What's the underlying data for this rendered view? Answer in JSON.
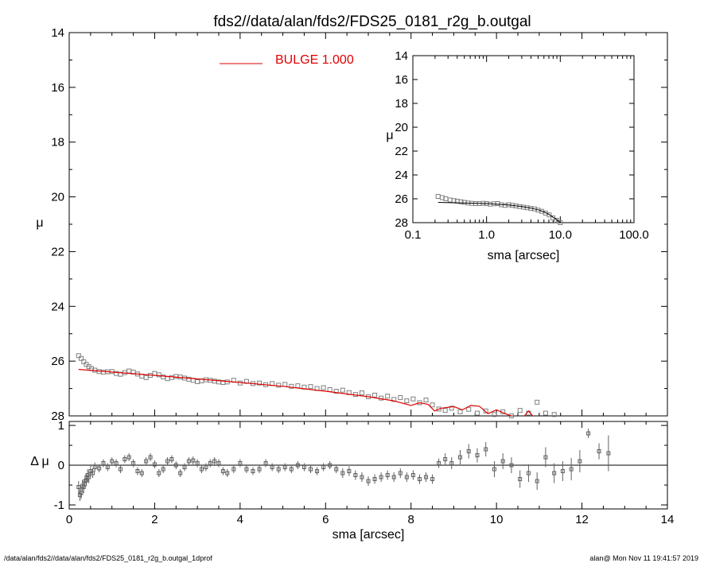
{
  "figure": {
    "title": "fds2//data/alan/fds2/FDS25_0181_r2g_b.outgal",
    "footer_left": "/data/alan/fds2//data/alan/fds2/FDS25_0181_r2g_b.outgal_1dprof",
    "footer_right": "alan@  Mon Nov 11 19:41:57 2019"
  },
  "chart_data": [
    {
      "name": "main",
      "type": "scatter",
      "xlabel": "",
      "ylabel": "μ",
      "xlim": [
        0,
        14
      ],
      "ylim": [
        28,
        14
      ],
      "y_inverted": true,
      "xticks": [
        0,
        2,
        4,
        6,
        8,
        10,
        12,
        14
      ],
      "yticks": [
        14,
        16,
        18,
        20,
        22,
        24,
        26,
        28
      ],
      "legend": {
        "label": "BULGE  1.000",
        "color": "#e00000",
        "placement": "top-center"
      },
      "series": [
        {
          "kind": "points",
          "marker": "open-square",
          "color": "#808080",
          "x": [
            0.22,
            0.28,
            0.34,
            0.4,
            0.46,
            0.52,
            0.6,
            0.7,
            0.8,
            0.9,
            1.0,
            1.1,
            1.2,
            1.3,
            1.4,
            1.5,
            1.6,
            1.7,
            1.8,
            1.9,
            2.0,
            2.1,
            2.2,
            2.3,
            2.4,
            2.5,
            2.6,
            2.7,
            2.8,
            2.9,
            3.0,
            3.1,
            3.2,
            3.3,
            3.4,
            3.5,
            3.6,
            3.7,
            3.85,
            4.0,
            4.15,
            4.3,
            4.45,
            4.6,
            4.75,
            4.9,
            5.05,
            5.2,
            5.35,
            5.5,
            5.65,
            5.8,
            5.95,
            6.1,
            6.25,
            6.4,
            6.55,
            6.7,
            6.85,
            7.0,
            7.15,
            7.3,
            7.45,
            7.6,
            7.75,
            7.9,
            8.05,
            8.2,
            8.35,
            8.5,
            8.65,
            8.8,
            8.95,
            9.15,
            9.35,
            9.55,
            9.75,
            9.95,
            10.15,
            10.35,
            10.55,
            10.75,
            10.95,
            11.15,
            11.35
          ],
          "y": [
            25.8,
            25.9,
            26.02,
            26.12,
            26.2,
            26.27,
            26.33,
            26.38,
            26.4,
            26.39,
            26.38,
            26.45,
            26.48,
            26.42,
            26.36,
            26.4,
            26.47,
            26.55,
            26.6,
            26.52,
            26.45,
            26.5,
            26.58,
            26.64,
            26.6,
            26.56,
            26.58,
            26.62,
            26.66,
            26.7,
            26.75,
            26.72,
            26.68,
            26.7,
            26.73,
            26.76,
            26.78,
            26.76,
            26.7,
            26.8,
            26.74,
            26.82,
            26.8,
            26.86,
            26.82,
            26.88,
            26.85,
            26.92,
            26.9,
            26.95,
            26.93,
            27.0,
            26.97,
            27.04,
            27.1,
            27.06,
            27.15,
            27.22,
            27.16,
            27.3,
            27.24,
            27.35,
            27.28,
            27.4,
            27.33,
            27.45,
            27.38,
            27.52,
            27.42,
            27.6,
            27.75,
            27.8,
            27.72,
            27.85,
            27.76,
            27.9,
            27.82,
            27.95,
            27.85,
            28.0,
            27.8,
            27.9,
            27.5,
            27.9,
            27.95
          ]
        },
        {
          "kind": "line",
          "name": "BULGE  1.000",
          "color": "#e00000",
          "x": [
            0.22,
            1.0,
            2.0,
            3.0,
            4.0,
            5.0,
            6.0,
            7.0,
            7.6,
            8.0,
            8.2,
            8.4,
            8.55,
            8.7,
            9.0,
            9.2,
            9.4,
            9.6,
            9.8,
            10.0,
            10.3,
            10.6,
            10.75,
            10.85,
            10.95,
            11.1
          ],
          "y": [
            26.3,
            26.4,
            26.52,
            26.65,
            26.78,
            26.92,
            27.1,
            27.3,
            27.45,
            27.62,
            27.52,
            27.58,
            27.82,
            27.72,
            27.66,
            27.78,
            27.62,
            27.65,
            27.92,
            27.78,
            27.98,
            28.1,
            27.82,
            28.0,
            28.1,
            28.4
          ]
        }
      ]
    },
    {
      "name": "residual",
      "type": "scatter",
      "xlabel": "sma [arcsec]",
      "ylabel": "Δ μ",
      "xlim": [
        0,
        14
      ],
      "ylim": [
        -1.1,
        1.1
      ],
      "xticks": [
        0,
        2,
        4,
        6,
        8,
        10,
        12,
        14
      ],
      "yticks": [
        -1,
        0,
        1
      ],
      "zero_line": true,
      "series": [
        {
          "kind": "points_errorbars",
          "marker": "open-square",
          "color": "#606060",
          "x": [
            0.22,
            0.25,
            0.28,
            0.31,
            0.34,
            0.37,
            0.4,
            0.43,
            0.46,
            0.5,
            0.55,
            0.6,
            0.7,
            0.8,
            0.9,
            1.0,
            1.1,
            1.2,
            1.3,
            1.4,
            1.5,
            1.6,
            1.7,
            1.8,
            1.9,
            2.0,
            2.1,
            2.2,
            2.3,
            2.4,
            2.5,
            2.6,
            2.7,
            2.8,
            2.9,
            3.0,
            3.1,
            3.2,
            3.3,
            3.4,
            3.5,
            3.6,
            3.7,
            3.85,
            4.0,
            4.15,
            4.3,
            4.45,
            4.6,
            4.75,
            4.9,
            5.05,
            5.2,
            5.35,
            5.5,
            5.65,
            5.8,
            5.95,
            6.1,
            6.25,
            6.4,
            6.55,
            6.7,
            6.85,
            7.0,
            7.15,
            7.3,
            7.45,
            7.6,
            7.75,
            7.9,
            8.05,
            8.2,
            8.35,
            8.5,
            8.65,
            8.8,
            8.95,
            9.15,
            9.35,
            9.55,
            9.75,
            9.95,
            10.15,
            10.35,
            10.55,
            10.75,
            10.95,
            11.15,
            11.35,
            11.55,
            11.75,
            11.95,
            12.15,
            12.4,
            12.62
          ],
          "y": [
            -0.55,
            -0.75,
            -0.7,
            -0.52,
            -0.55,
            -0.4,
            -0.38,
            -0.25,
            -0.3,
            -0.15,
            -0.2,
            -0.05,
            -0.08,
            0.05,
            -0.05,
            0.1,
            0.05,
            -0.1,
            0.15,
            0.2,
            0.05,
            -0.15,
            -0.2,
            0.1,
            0.2,
            0.02,
            -0.2,
            -0.1,
            0.1,
            0.15,
            0.0,
            -0.2,
            -0.05,
            0.1,
            0.12,
            0.05,
            -0.1,
            -0.05,
            0.05,
            0.1,
            0.05,
            -0.15,
            -0.2,
            -0.1,
            0.05,
            -0.1,
            -0.15,
            -0.1,
            0.05,
            -0.05,
            -0.1,
            -0.05,
            -0.1,
            0.0,
            -0.05,
            -0.1,
            -0.15,
            -0.05,
            0.0,
            -0.1,
            -0.2,
            -0.15,
            -0.25,
            -0.3,
            -0.4,
            -0.35,
            -0.3,
            -0.25,
            -0.3,
            -0.2,
            -0.3,
            -0.25,
            -0.35,
            -0.3,
            -0.35,
            0.05,
            0.15,
            0.05,
            0.2,
            0.35,
            0.25,
            0.4,
            -0.1,
            0.1,
            0.0,
            -0.35,
            -0.2,
            -0.4,
            0.2,
            -0.2,
            -0.15,
            -0.1,
            0.1,
            0.8,
            0.35,
            0.3
          ],
          "err": [
            0.15,
            0.15,
            0.15,
            0.15,
            0.15,
            0.15,
            0.15,
            0.15,
            0.15,
            0.15,
            0.12,
            0.12,
            0.1,
            0.1,
            0.1,
            0.1,
            0.1,
            0.1,
            0.1,
            0.1,
            0.1,
            0.1,
            0.1,
            0.1,
            0.1,
            0.1,
            0.1,
            0.1,
            0.1,
            0.1,
            0.1,
            0.1,
            0.1,
            0.1,
            0.1,
            0.1,
            0.1,
            0.1,
            0.1,
            0.1,
            0.1,
            0.1,
            0.1,
            0.1,
            0.1,
            0.1,
            0.1,
            0.1,
            0.1,
            0.1,
            0.1,
            0.1,
            0.1,
            0.1,
            0.1,
            0.1,
            0.1,
            0.1,
            0.1,
            0.1,
            0.12,
            0.12,
            0.12,
            0.12,
            0.12,
            0.12,
            0.12,
            0.12,
            0.12,
            0.12,
            0.12,
            0.12,
            0.12,
            0.12,
            0.12,
            0.12,
            0.15,
            0.15,
            0.18,
            0.18,
            0.18,
            0.18,
            0.2,
            0.2,
            0.2,
            0.22,
            0.22,
            0.22,
            0.25,
            0.25,
            0.25,
            0.28,
            0.28,
            0.12,
            0.2,
            0.45
          ]
        }
      ]
    },
    {
      "name": "inset",
      "type": "scatter",
      "xlabel": "sma [arcsec]",
      "ylabel": "μ",
      "xscale": "log",
      "xlim": [
        0.1,
        100.0
      ],
      "ylim": [
        28,
        14
      ],
      "y_inverted": true,
      "xticks": [
        0.1,
        1.0,
        10.0,
        100.0
      ],
      "xtick_labels": [
        "0.1",
        "1.0",
        "10.0",
        "100.0"
      ],
      "yticks": [
        14,
        16,
        18,
        20,
        22,
        24,
        26,
        28
      ],
      "series": [
        {
          "kind": "points",
          "marker": "open-square",
          "color": "#808080",
          "x": [
            0.22,
            0.25,
            0.28,
            0.32,
            0.36,
            0.4,
            0.45,
            0.5,
            0.56,
            0.63,
            0.71,
            0.8,
            0.9,
            1.0,
            1.12,
            1.26,
            1.41,
            1.58,
            1.78,
            2.0,
            2.24,
            2.51,
            2.82,
            3.16,
            3.55,
            3.98,
            4.47,
            5.01,
            5.62,
            6.31,
            7.08,
            7.94,
            8.91,
            10.0
          ],
          "y": [
            25.8,
            25.9,
            26.0,
            26.1,
            26.15,
            26.2,
            26.25,
            26.3,
            26.35,
            26.38,
            26.4,
            26.4,
            26.38,
            26.4,
            26.45,
            26.42,
            26.4,
            26.5,
            26.55,
            26.5,
            26.55,
            26.6,
            26.65,
            26.7,
            26.75,
            26.8,
            26.85,
            26.95,
            27.05,
            27.2,
            27.35,
            27.6,
            27.8,
            28.0
          ]
        },
        {
          "kind": "line",
          "color": "#000000",
          "x": [
            0.22,
            1.0,
            2.0,
            3.0,
            4.0,
            5.0,
            6.0,
            7.0,
            8.0,
            9.0,
            10.0
          ],
          "y": [
            26.3,
            26.4,
            26.52,
            26.65,
            26.78,
            26.92,
            27.1,
            27.3,
            27.55,
            27.75,
            28.0
          ]
        }
      ]
    }
  ]
}
